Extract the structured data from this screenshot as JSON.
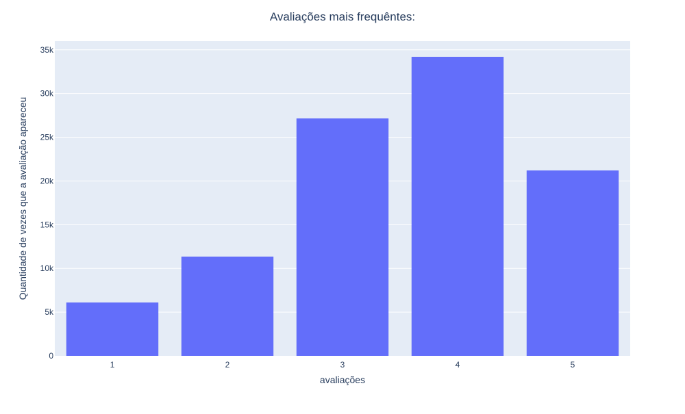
{
  "chart_data": {
    "type": "bar",
    "title": "Avaliações mais frequêntes:",
    "xlabel": "avaliações",
    "ylabel": "Quantidade de vezes que a avaliação apareceu",
    "categories": [
      "1",
      "2",
      "3",
      "4",
      "5"
    ],
    "values": [
      6100,
      11350,
      27150,
      34200,
      21200
    ],
    "ylim": [
      0,
      36000
    ],
    "yticks": [
      0,
      5000,
      10000,
      15000,
      20000,
      25000,
      30000,
      35000
    ],
    "ytick_labels": [
      "0",
      "5k",
      "10k",
      "15k",
      "20k",
      "25k",
      "30k",
      "35k"
    ],
    "grid": true,
    "legend": "none"
  },
  "colors": {
    "bar": "#636efa",
    "plot_background": "#e5ecf6",
    "grid": "#ffffff",
    "text": "#2a3f5f"
  }
}
